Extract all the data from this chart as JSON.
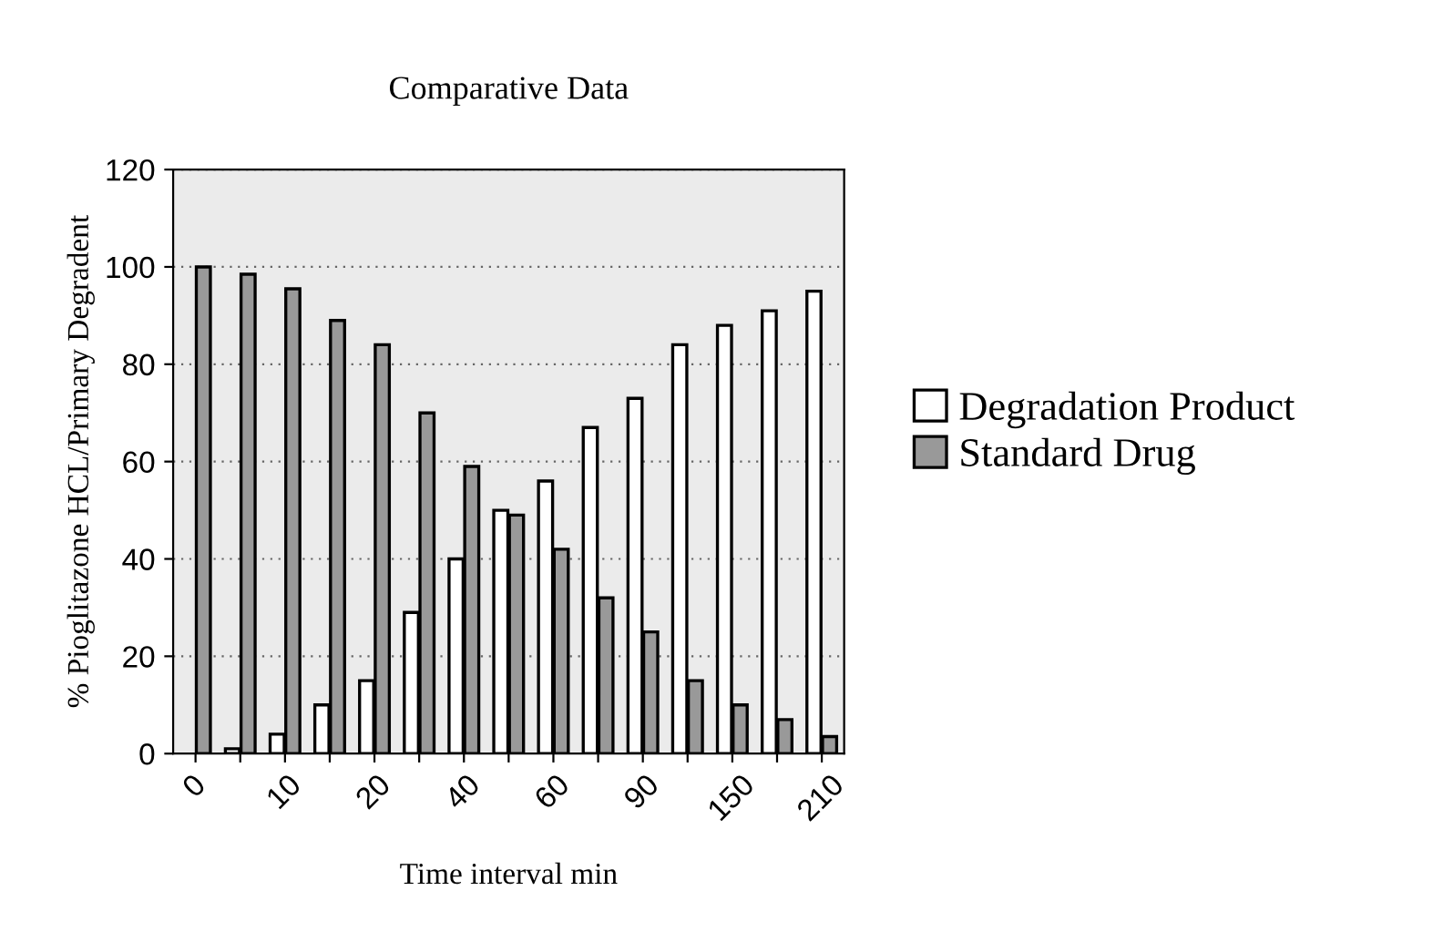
{
  "chart_data": {
    "type": "bar",
    "title": "Comparative Data",
    "xlabel": "Time interval min",
    "ylabel": "% Pioglitazone HCL/Primary Degradent",
    "categories": [
      "0",
      null,
      "10",
      null,
      "20",
      null,
      "40",
      null,
      "60",
      null,
      "90",
      null,
      "150",
      null,
      "210"
    ],
    "series": [
      {
        "name": "Degradation Product",
        "color": "#ffffff",
        "values": [
          null,
          1,
          4,
          10,
          15,
          29,
          40,
          50,
          56,
          67,
          73,
          84,
          88,
          91,
          95
        ]
      },
      {
        "name": "Standard Drug",
        "color": "#999999",
        "values": [
          100,
          98.5,
          95.5,
          89,
          84,
          70,
          59,
          49,
          42,
          32,
          25,
          15,
          10,
          7,
          3.5
        ]
      }
    ],
    "ylim": [
      0,
      120
    ],
    "yticks": [
      0,
      20,
      40,
      60,
      80,
      100,
      120
    ],
    "grid": "y",
    "legend": "right"
  }
}
